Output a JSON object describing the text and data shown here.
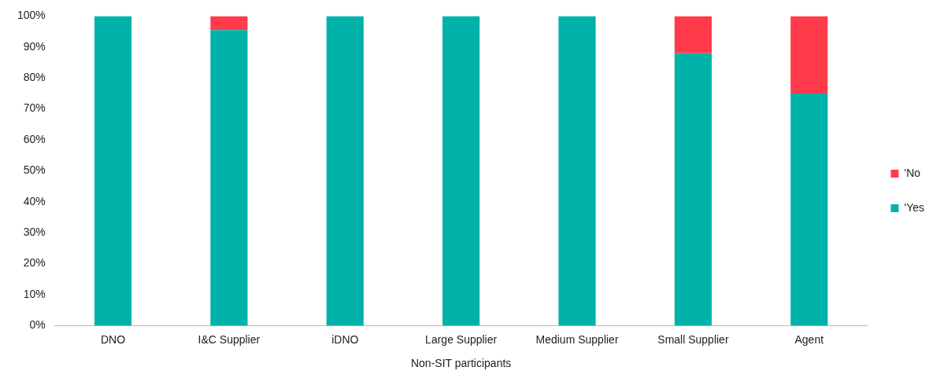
{
  "chart_data": {
    "type": "bar",
    "stacked": true,
    "xlabel": "Non-SIT participants",
    "categories": [
      "DNO",
      "I&C Supplier",
      "iDNO",
      "Large Supplier",
      "Medium Supplier",
      "Small Supplier",
      "Agent"
    ],
    "series": [
      {
        "name": "'Yes",
        "color": "#00b2a9",
        "values": [
          100,
          95.5,
          100,
          100,
          100,
          88,
          75
        ]
      },
      {
        "name": "'No",
        "color": "#ff3b4b",
        "values": [
          0,
          4.5,
          0,
          0,
          0,
          12,
          25
        ]
      }
    ],
    "ylim": [
      0,
      100
    ],
    "yticks": [
      {
        "value": 0,
        "label": "0%"
      },
      {
        "value": 10,
        "label": "10%"
      },
      {
        "value": 20,
        "label": "20%"
      },
      {
        "value": 30,
        "label": "30%"
      },
      {
        "value": 40,
        "label": "40%"
      },
      {
        "value": 50,
        "label": "50%"
      },
      {
        "value": 60,
        "label": "60%"
      },
      {
        "value": 70,
        "label": "70%"
      },
      {
        "value": 80,
        "label": "80%"
      },
      {
        "value": 90,
        "label": "90%"
      },
      {
        "value": 100,
        "label": "100%"
      }
    ],
    "grid": false,
    "legend": "right"
  }
}
